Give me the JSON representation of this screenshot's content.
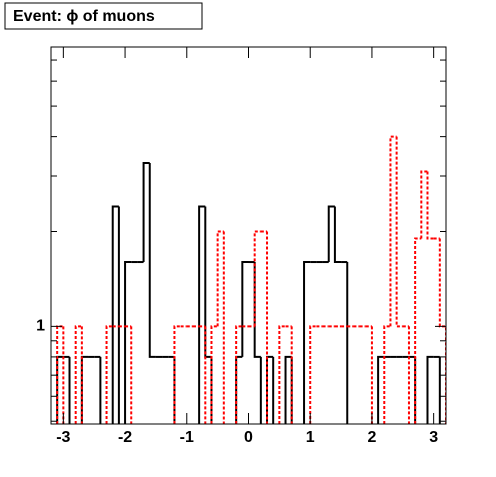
{
  "chart_data": {
    "type": "histogram",
    "title": "Event: ϕ of muons",
    "bins": [
      -3.2,
      -3.1,
      -3.0,
      -2.9,
      -2.8,
      -2.7,
      -2.6,
      -2.5,
      -2.4,
      -2.3,
      -2.2,
      -2.1,
      -2.0,
      -1.9,
      -1.8,
      -1.7,
      -1.6,
      -1.5,
      -1.4,
      -1.3,
      -1.2,
      -1.1,
      -1.0,
      -0.9,
      -0.8,
      -0.7,
      -0.6,
      -0.5,
      -0.4,
      -0.3,
      -0.2,
      -0.1,
      0.0,
      0.1,
      0.2,
      0.3,
      0.4,
      0.5,
      0.6,
      0.7,
      0.8,
      0.9,
      1.0,
      1.1,
      1.2,
      1.3,
      1.4,
      1.5,
      1.6,
      1.7,
      1.8,
      1.9,
      2.0,
      2.1,
      2.2,
      2.3,
      2.4,
      2.5,
      2.6,
      2.7,
      2.8,
      2.9,
      3.0,
      3.1,
      3.2
    ],
    "series": [
      {
        "color": "#000000",
        "dash": false,
        "values": [
          0,
          0.8,
          0.8,
          0,
          0,
          0.8,
          0.8,
          0.8,
          0,
          0,
          2.4,
          0,
          1.6,
          1.6,
          1.6,
          3.3,
          0.8,
          0.8,
          0.8,
          0.8,
          0,
          0,
          0,
          0,
          2.4,
          0.8,
          0,
          0,
          0,
          0,
          0.8,
          1.6,
          1.6,
          0.8,
          0,
          0.8,
          0,
          0,
          0.8,
          0,
          0,
          1.6,
          1.6,
          1.6,
          1.6,
          2.4,
          1.6,
          1.6,
          0,
          0,
          0,
          0,
          0,
          0.8,
          0.8,
          0.8,
          0.8,
          0.8,
          0.8,
          0,
          0,
          0.8,
          0.8,
          0
        ]
      },
      {
        "color": "#ff0000",
        "dash": true,
        "values": [
          0,
          1,
          0,
          0,
          1,
          0,
          0,
          0,
          0,
          1,
          1,
          1,
          1,
          0,
          0,
          0,
          0,
          0,
          0,
          0,
          1,
          1,
          1,
          1,
          1,
          0,
          1,
          2,
          0,
          0,
          1,
          1,
          1,
          2,
          2,
          0,
          0,
          1,
          1,
          0,
          0,
          0,
          1,
          1,
          1,
          1,
          1,
          1,
          1,
          1,
          1,
          1,
          0,
          0,
          1,
          4,
          1,
          1,
          0,
          1.9,
          3.1,
          1.9,
          1.9,
          1
        ]
      }
    ],
    "xlim": [
      -3.2,
      3.2
    ],
    "xticks": [
      -3,
      -2,
      -1,
      0,
      1,
      2,
      3
    ],
    "ylim": [
      0.49,
      7.7
    ],
    "ylog": true,
    "yticks": [
      1
    ],
    "yminorticks": [
      0.5,
      0.6,
      0.7,
      0.8,
      0.9,
      2,
      3,
      4,
      5,
      6,
      7
    ]
  }
}
